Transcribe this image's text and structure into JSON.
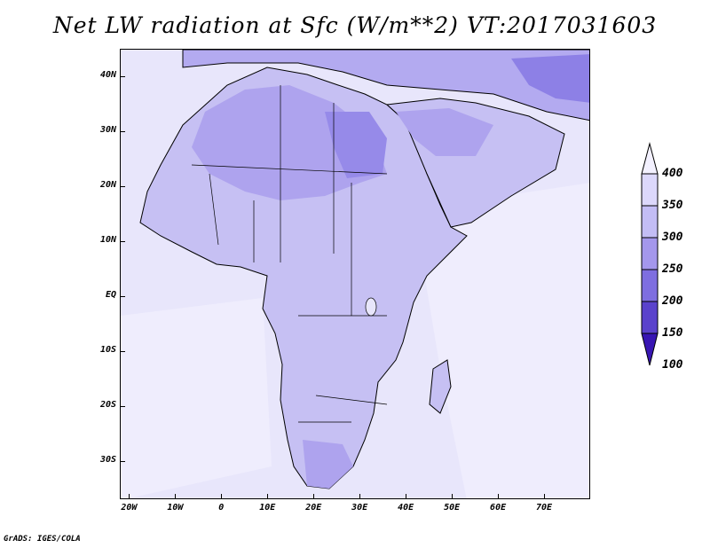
{
  "title": "Net LW radiation at Sfc (W/m**2) VT:2017031603",
  "credit": "GrADS: IGES/COLA",
  "y_axis": {
    "labels": [
      "40N",
      "30N",
      "20N",
      "10N",
      "EQ",
      "10S",
      "20S",
      "30S"
    ],
    "values": [
      40,
      30,
      20,
      10,
      0,
      -10,
      -20,
      -30
    ],
    "range": [
      -37,
      45
    ]
  },
  "x_axis": {
    "labels": [
      "20W",
      "10W",
      "0",
      "10E",
      "20E",
      "30E",
      "40E",
      "50E",
      "60E",
      "70E"
    ],
    "values": [
      -20,
      -10,
      0,
      10,
      20,
      30,
      40,
      50,
      60,
      70
    ],
    "range": [
      -22,
      80
    ]
  },
  "colorbar": {
    "labels": [
      "400",
      "350",
      "300",
      "250",
      "200",
      "150",
      "100"
    ],
    "colors": [
      "#f3f1ff",
      "#dcd8fb",
      "#c3bdf5",
      "#a497ec",
      "#7e6ee0",
      "#5a42cc",
      "#3816b3"
    ],
    "extend": "both"
  },
  "colors": {
    "ocean": "#e8e6fb",
    "land": "#c6c0f3",
    "sahara": "#aea3ee",
    "dark": "#8d80e6",
    "border": "#000000"
  }
}
